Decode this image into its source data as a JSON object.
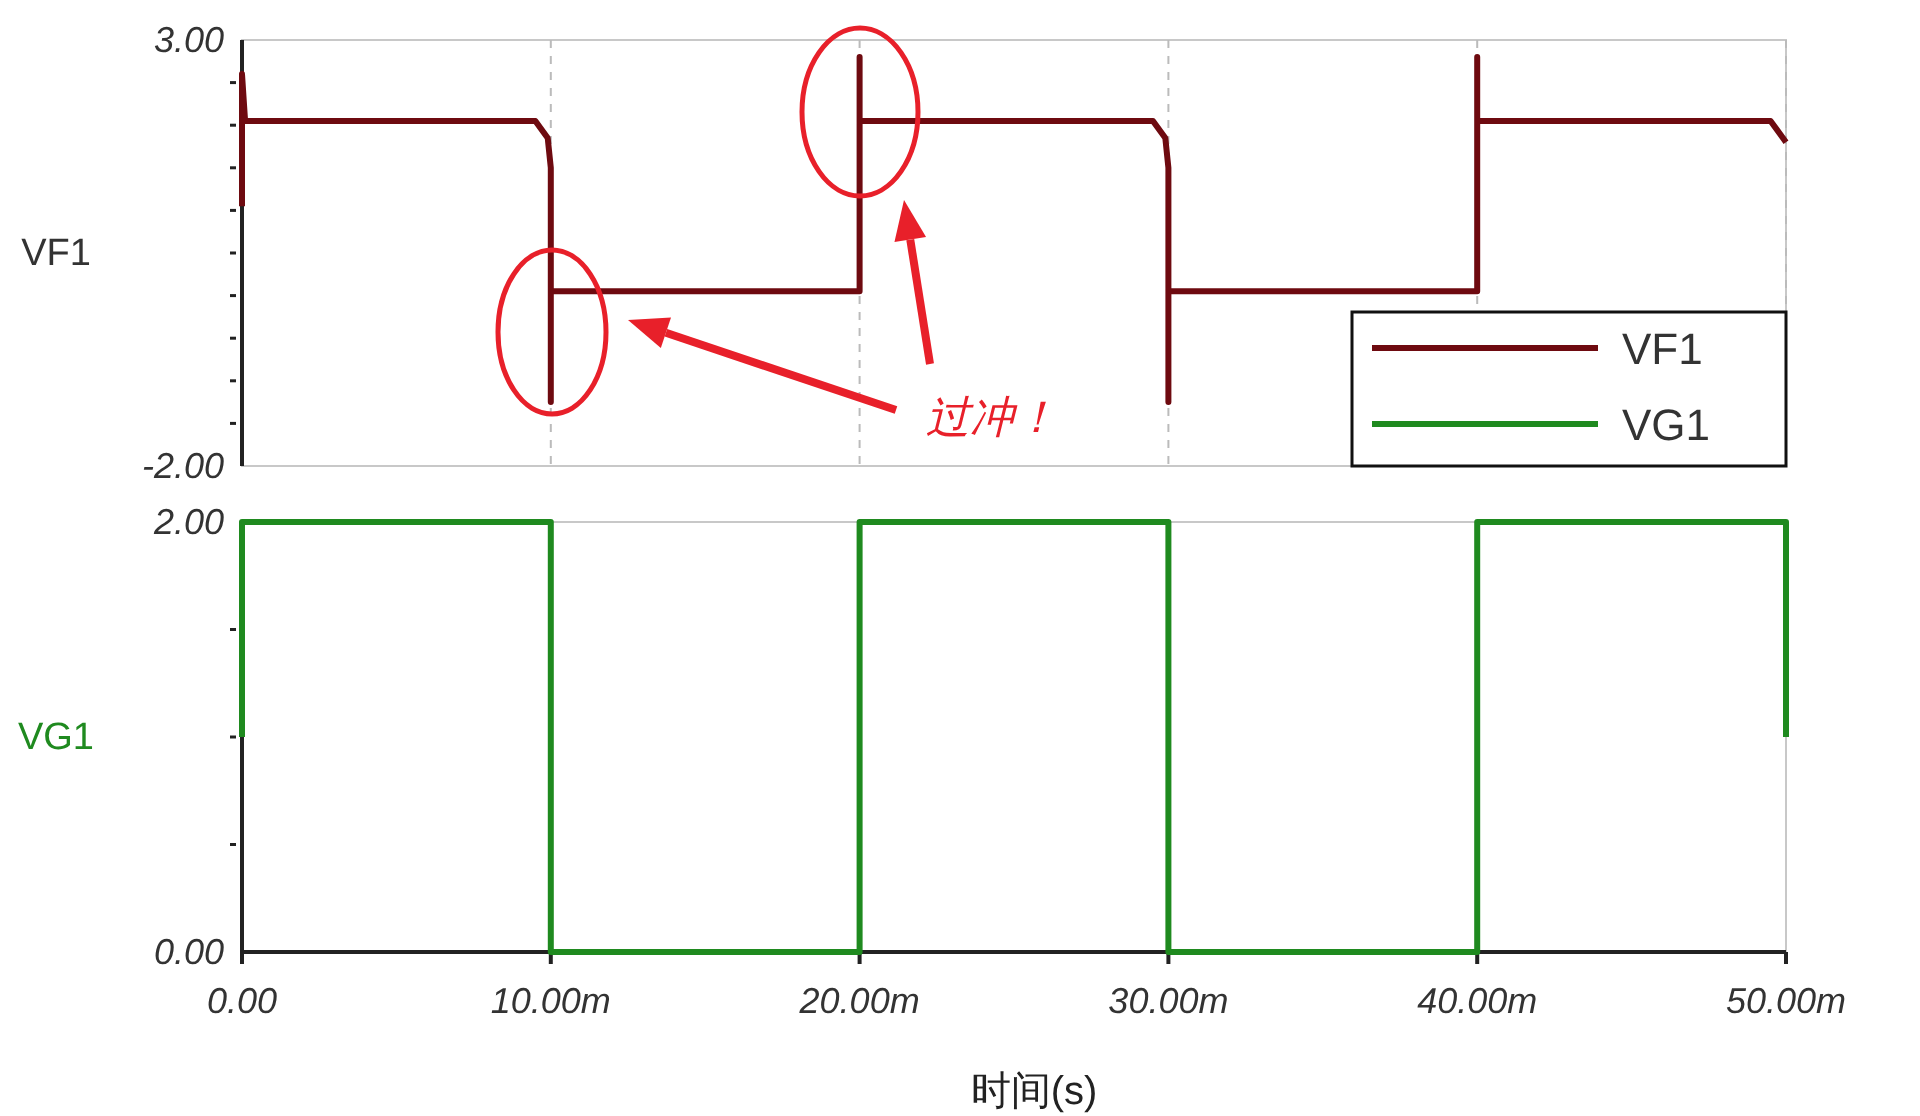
{
  "chart_data": [
    {
      "type": "line",
      "ylabel": "VF1",
      "xlim": [
        0,
        50
      ],
      "xticks": [
        0,
        10,
        20,
        30,
        40,
        50
      ],
      "ylim": [
        -2,
        3
      ],
      "yticks": [
        {
          "value": -2,
          "label": "-2.00"
        },
        {
          "value": -1.5,
          "label": null
        },
        {
          "value": -1,
          "label": null
        },
        {
          "value": -0.5,
          "label": null
        },
        {
          "value": 0,
          "label": null
        },
        {
          "value": 0.5,
          "label": null
        },
        {
          "value": 1,
          "label": null
        },
        {
          "value": 1.5,
          "label": null
        },
        {
          "value": 2,
          "label": null
        },
        {
          "value": 2.5,
          "label": null
        },
        {
          "value": 3,
          "label": "3.00"
        }
      ],
      "tick_labels": "y",
      "grid": "x",
      "legend": "bottom right",
      "annotations": [
        "过冲！"
      ],
      "series": [
        {
          "name": "VF1",
          "color": "#6e0a10",
          "x": [
            0,
            0,
            0.1,
            9.5,
            9.9,
            10,
            10,
            10,
            20,
            20,
            20,
            29.5,
            29.9,
            30,
            30,
            30,
            40,
            40,
            40,
            49.5,
            50
          ],
          "values": [
            1.05,
            2.6,
            2.05,
            2.05,
            1.85,
            1.5,
            -1.25,
            0.05,
            0.05,
            2.8,
            2.05,
            2.05,
            1.85,
            1.5,
            -1.25,
            0.05,
            0.05,
            2.8,
            2.05,
            2.05,
            1.8
          ]
        }
      ]
    },
    {
      "type": "line",
      "ylabel": "VG1",
      "xlabel": "时间(s)",
      "xlim": [
        0,
        50
      ],
      "xticks": [
        {
          "value": 0,
          "label": "0.00"
        },
        {
          "value": 10,
          "label": "10.00m"
        },
        {
          "value": 20,
          "label": "20.00m"
        },
        {
          "value": 30,
          "label": "30.00m"
        },
        {
          "value": 40,
          "label": "40.00m"
        },
        {
          "value": 50,
          "label": "50.00m"
        }
      ],
      "ylim": [
        0,
        2
      ],
      "yticks": [
        {
          "value": 0,
          "label": "0.00"
        },
        {
          "value": 0.5,
          "label": null
        },
        {
          "value": 1,
          "label": null
        },
        {
          "value": 1.5,
          "label": null
        },
        {
          "value": 2,
          "label": "2.00"
        }
      ],
      "grid": false,
      "series": [
        {
          "name": "VG1",
          "color": "#1f8a1f",
          "x": [
            0,
            0,
            10,
            10,
            20,
            20,
            30,
            30,
            40,
            40,
            50,
            50
          ],
          "values": [
            1,
            2,
            2,
            0,
            0,
            2,
            2,
            0,
            0,
            2,
            2,
            1
          ]
        }
      ]
    }
  ]
}
